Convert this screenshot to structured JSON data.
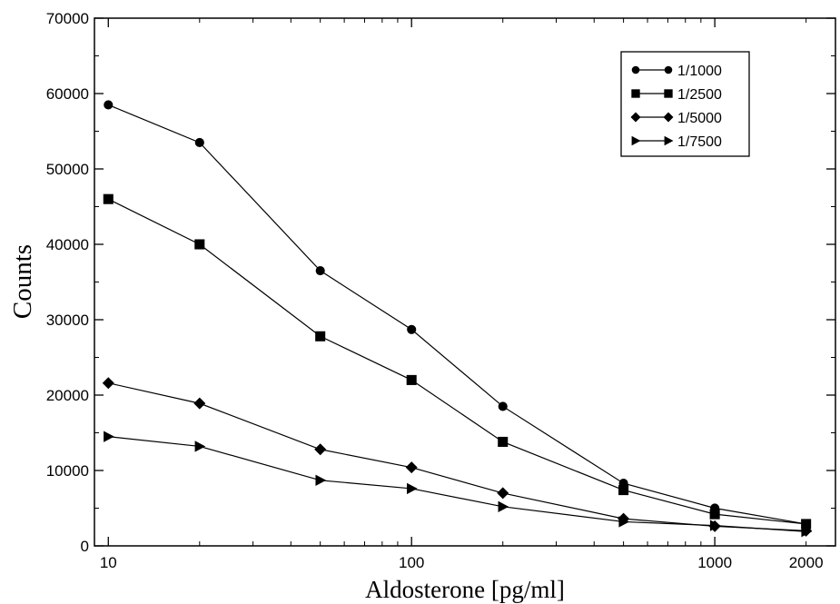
{
  "chart_data": {
    "type": "line",
    "title": "",
    "xlabel": "Aldosterone [pg/ml]",
    "ylabel": "Counts",
    "x_scale": "log",
    "xlim": [
      9,
      2500
    ],
    "ylim": [
      0,
      70000
    ],
    "x_ticks": [
      10,
      100,
      1000,
      2000
    ],
    "x_tick_labels": [
      "10",
      "100",
      "1000",
      "2000"
    ],
    "y_ticks": [
      0,
      10000,
      20000,
      30000,
      40000,
      50000,
      60000,
      70000
    ],
    "y_tick_labels": [
      "0",
      "10000",
      "20000",
      "30000",
      "40000",
      "50000",
      "60000",
      "70000"
    ],
    "grid": false,
    "legend_position": "top-right",
    "x": [
      10,
      20,
      50,
      100,
      200,
      500,
      1000,
      2000
    ],
    "series": [
      {
        "name": "1/1000",
        "marker": "circle",
        "values": [
          58500,
          53500,
          36500,
          28700,
          18500,
          8300,
          5000,
          2900
        ]
      },
      {
        "name": "1/2500",
        "marker": "square",
        "values": [
          46000,
          40000,
          27800,
          22000,
          13800,
          7400,
          4200,
          2900
        ]
      },
      {
        "name": "1/5000",
        "marker": "diamond",
        "values": [
          21600,
          18900,
          12800,
          10400,
          7000,
          3600,
          2600,
          2000
        ]
      },
      {
        "name": "1/7500",
        "marker": "triangle-right",
        "values": [
          14500,
          13200,
          8700,
          7600,
          5200,
          3200,
          2700,
          1900
        ]
      }
    ]
  }
}
